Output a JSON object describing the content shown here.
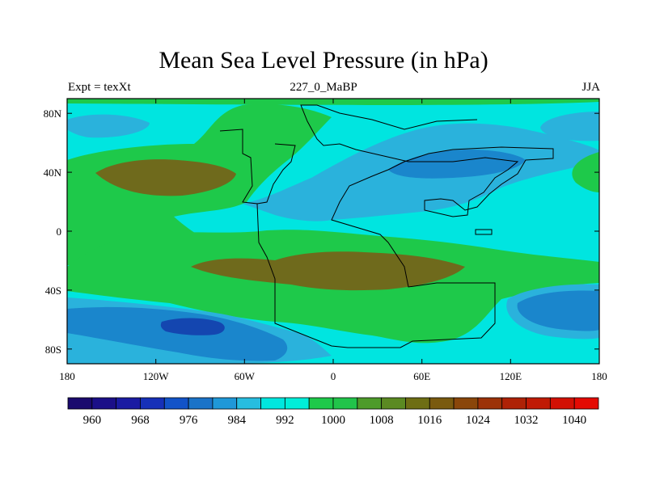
{
  "title": "Mean Sea Level Pressure (in hPa)",
  "subtitle_left": "Expt = texXt",
  "subtitle_center": "227_0_MaBP",
  "subtitle_right": "JJA",
  "map": {
    "lon_range": [
      -180,
      180
    ],
    "lat_range": [
      -90,
      90
    ],
    "x_ticks": [
      "180",
      "120W",
      "60W",
      "0",
      "60E",
      "120E",
      "180"
    ],
    "y_ticks": [
      "80N",
      "40N",
      "0",
      "40S",
      "80S"
    ]
  },
  "colorbar": {
    "colors": [
      "#1a0a6e",
      "#1b0f88",
      "#1a1ba2",
      "#1630b8",
      "#1253c8",
      "#1a73c8",
      "#1f98d8",
      "#27bde0",
      "#00e7df",
      "#00eed9",
      "#1ec94a",
      "#21c44a",
      "#4d9b2a",
      "#5b8a22",
      "#6e6e14",
      "#7a5a0f",
      "#8a460a",
      "#9c3208",
      "#ae2206",
      "#c01a05",
      "#d21004",
      "#e40a03"
    ],
    "labels": [
      "960",
      "968",
      "976",
      "984",
      "992",
      "1000",
      "1008",
      "1016",
      "1024",
      "1032",
      "1040"
    ]
  },
  "colors": {
    "background": "#00e5e0",
    "green": "#1ec94a",
    "brown": "#6f6a1c",
    "blue_light": "#2ab2dc",
    "blue_mid": "#1a86cc",
    "blue_dark": "#1446b0"
  }
}
